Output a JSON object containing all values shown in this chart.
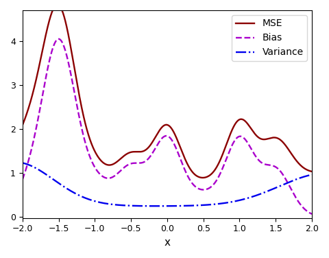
{
  "x_min": -2.0,
  "x_max": 2.0,
  "y_min": -0.02,
  "y_max": 4.7,
  "yticks": [
    0,
    1,
    2,
    3,
    4
  ],
  "xticks": [
    -2.0,
    -1.5,
    -1.0,
    -0.5,
    0.0,
    0.5,
    1.0,
    1.5,
    2.0
  ],
  "xlabel": "x",
  "mse_color": "#8B0000",
  "bias_color": "#AA00CC",
  "variance_color": "#0000EE",
  "mse_label": "MSE",
  "bias_label": "Bias",
  "variance_label": "Variance",
  "mse_linewidth": 1.7,
  "bias_linewidth": 1.7,
  "variance_linewidth": 1.7,
  "legend_fontsize": 10,
  "tick_fontsize": 9,
  "xlabel_fontsize": 11,
  "figsize": [
    4.8,
    3.76
  ],
  "dpi": 100
}
